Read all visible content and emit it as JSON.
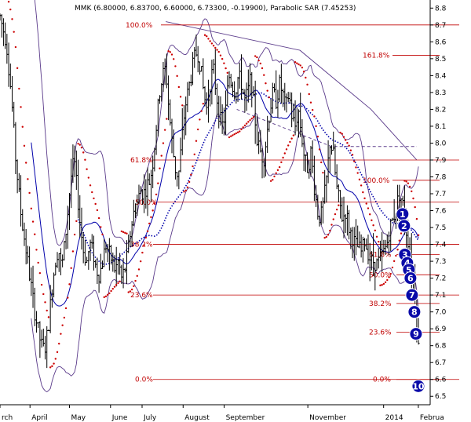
{
  "chart_data": {
    "type": "candlestick",
    "title": "MMK (6.80000, 6.83700, 6.60000, 6.73300, -0.19900), Parabolic SAR (7.45253)",
    "y_ticks": [
      "8.8",
      "8.7",
      "8.6",
      "8.5",
      "8.4",
      "8.3",
      "8.2",
      "8.1",
      "8.0",
      "7.9",
      "7.8",
      "7.7",
      "7.6",
      "7.5",
      "7.4",
      "7.3",
      "7.2",
      "7.1",
      "7.0",
      "6.9",
      "6.8",
      "6.7",
      "6.6",
      "6.5"
    ],
    "y_tick_values": [
      8.8,
      8.7,
      8.6,
      8.5,
      8.4,
      8.3,
      8.2,
      8.1,
      8.0,
      7.9,
      7.8,
      7.7,
      7.6,
      7.5,
      7.4,
      7.3,
      7.2,
      7.1,
      7.0,
      6.9,
      6.8,
      6.7,
      6.6,
      6.5
    ],
    "ylim": [
      6.45,
      8.82
    ],
    "x_labels": [
      {
        "label": "rch",
        "pos": 0
      },
      {
        "label": "April",
        "pos": 38
      },
      {
        "label": "May",
        "pos": 88
      },
      {
        "label": "June",
        "pos": 140
      },
      {
        "label": "July",
        "pos": 180
      },
      {
        "label": "August",
        "pos": 232
      },
      {
        "label": "September",
        "pos": 284
      },
      {
        "label": "November",
        "pos": 390
      },
      {
        "label": "2014",
        "pos": 486
      },
      {
        "label": "Februa",
        "pos": 530
      }
    ],
    "x_range": [
      0,
      545
    ],
    "price_path": [
      [
        0,
        8.75
      ],
      [
        8,
        8.6
      ],
      [
        14,
        8.3
      ],
      [
        20,
        7.9
      ],
      [
        26,
        7.6
      ],
      [
        32,
        7.4
      ],
      [
        38,
        7.2
      ],
      [
        44,
        7.0
      ],
      [
        50,
        6.85
      ],
      [
        54,
        6.78
      ],
      [
        58,
        6.8
      ],
      [
        62,
        6.95
      ],
      [
        66,
        7.15
      ],
      [
        70,
        7.3
      ],
      [
        74,
        7.38
      ],
      [
        78,
        7.25
      ],
      [
        82,
        7.4
      ],
      [
        86,
        7.6
      ],
      [
        90,
        7.8
      ],
      [
        94,
        7.9
      ],
      [
        98,
        7.7
      ],
      [
        102,
        7.5
      ],
      [
        106,
        7.35
      ],
      [
        110,
        7.3
      ],
      [
        114,
        7.4
      ],
      [
        118,
        7.35
      ],
      [
        122,
        7.25
      ],
      [
        126,
        7.22
      ],
      [
        130,
        7.3
      ],
      [
        134,
        7.4
      ],
      [
        138,
        7.35
      ],
      [
        142,
        7.3
      ],
      [
        146,
        7.25
      ],
      [
        150,
        7.3
      ],
      [
        154,
        7.2
      ],
      [
        158,
        7.25
      ],
      [
        162,
        7.35
      ],
      [
        166,
        7.5
      ],
      [
        170,
        7.6
      ],
      [
        174,
        7.65
      ],
      [
        178,
        7.72
      ],
      [
        182,
        7.7
      ],
      [
        186,
        7.75
      ],
      [
        190,
        7.78
      ],
      [
        194,
        7.9
      ],
      [
        198,
        8.1
      ],
      [
        202,
        8.3
      ],
      [
        206,
        8.4
      ],
      [
        210,
        8.45
      ],
      [
        214,
        8.2
      ],
      [
        218,
        8.0
      ],
      [
        222,
        7.85
      ],
      [
        226,
        7.8
      ],
      [
        230,
        8.0
      ],
      [
        234,
        8.2
      ],
      [
        238,
        8.3
      ],
      [
        242,
        8.4
      ],
      [
        246,
        8.5
      ],
      [
        250,
        8.55
      ],
      [
        254,
        8.45
      ],
      [
        258,
        8.3
      ],
      [
        262,
        8.2
      ],
      [
        266,
        8.35
      ],
      [
        270,
        8.45
      ],
      [
        274,
        8.3
      ],
      [
        278,
        8.15
      ],
      [
        282,
        8.1
      ],
      [
        286,
        8.2
      ],
      [
        290,
        8.4
      ],
      [
        294,
        8.35
      ],
      [
        298,
        8.3
      ],
      [
        302,
        8.4
      ],
      [
        306,
        8.35
      ],
      [
        310,
        8.25
      ],
      [
        314,
        8.3
      ],
      [
        318,
        8.4
      ],
      [
        322,
        8.2
      ],
      [
        326,
        8.0
      ],
      [
        330,
        7.95
      ],
      [
        334,
        7.9
      ],
      [
        338,
        8.05
      ],
      [
        342,
        8.2
      ],
      [
        346,
        8.3
      ],
      [
        350,
        8.25
      ],
      [
        354,
        8.35
      ],
      [
        358,
        8.3
      ],
      [
        362,
        8.2
      ],
      [
        366,
        8.3
      ],
      [
        370,
        8.15
      ],
      [
        374,
        8.1
      ],
      [
        378,
        8.2
      ],
      [
        382,
        8.05
      ],
      [
        386,
        7.9
      ],
      [
        390,
        7.85
      ],
      [
        394,
        7.95
      ],
      [
        398,
        7.75
      ],
      [
        402,
        7.6
      ],
      [
        406,
        7.55
      ],
      [
        410,
        7.65
      ],
      [
        414,
        7.8
      ],
      [
        418,
        8.0
      ],
      [
        422,
        7.95
      ],
      [
        426,
        7.75
      ],
      [
        430,
        7.65
      ],
      [
        434,
        7.55
      ],
      [
        438,
        7.6
      ],
      [
        442,
        7.5
      ],
      [
        446,
        7.45
      ],
      [
        450,
        7.4
      ],
      [
        454,
        7.38
      ],
      [
        458,
        7.35
      ],
      [
        462,
        7.42
      ],
      [
        466,
        7.36
      ],
      [
        470,
        7.3
      ],
      [
        474,
        7.3
      ],
      [
        478,
        7.28
      ],
      [
        482,
        7.32
      ],
      [
        486,
        7.35
      ],
      [
        490,
        7.4
      ],
      [
        494,
        7.5
      ],
      [
        498,
        7.55
      ],
      [
        502,
        7.62
      ],
      [
        506,
        7.7
      ],
      [
        510,
        7.65
      ],
      [
        514,
        7.5
      ],
      [
        518,
        7.4
      ],
      [
        522,
        7.25
      ],
      [
        526,
        7.1
      ],
      [
        530,
        6.8
      ],
      [
        532,
        6.73
      ]
    ],
    "fib_levels": [
      {
        "label": "100.0%",
        "value": 8.7,
        "x1": 205,
        "x2": 585,
        "label_x": 160
      },
      {
        "label": "161.8%",
        "value": 8.52,
        "x1": 500,
        "x2": 560,
        "label_x": 462
      },
      {
        "label": "61.8%",
        "value": 7.9,
        "x1": 195,
        "x2": 585,
        "label_x": 166
      },
      {
        "label": "50.0%",
        "value": 7.65,
        "x1": 195,
        "x2": 585,
        "label_x": 172
      },
      {
        "label": "100.0%",
        "value": 7.78,
        "x1": 500,
        "x2": 560,
        "label_x": 462
      },
      {
        "label": "38.2%",
        "value": 7.4,
        "x1": 195,
        "x2": 585,
        "label_x": 166
      },
      {
        "label": "61.8%",
        "value": 7.34,
        "x1": 505,
        "x2": 560,
        "label_x": 470
      },
      {
        "label": "50.0%",
        "value": 7.22,
        "x1": 505,
        "x2": 560,
        "label_x": 470
      },
      {
        "label": "23.6%",
        "value": 7.1,
        "x1": 195,
        "x2": 585,
        "label_x": 166
      },
      {
        "label": "38.2%",
        "value": 7.05,
        "x1": 505,
        "x2": 560,
        "label_x": 470
      },
      {
        "label": "23.6%",
        "value": 6.88,
        "x1": 505,
        "x2": 560,
        "label_x": 470
      },
      {
        "label": "0.0%",
        "value": 6.6,
        "x1": 195,
        "x2": 585,
        "label_x": 172
      },
      {
        "label": "0.0%",
        "value": 6.6,
        "x1": 505,
        "x2": 560,
        "label_x": 475
      }
    ],
    "wave_markers": [
      {
        "label": "1",
        "x": 510,
        "value": 7.58
      },
      {
        "label": "2",
        "x": 512,
        "value": 7.51
      },
      {
        "label": "3",
        "x": 513,
        "value": 7.34
      },
      {
        "label": "4",
        "x": 516,
        "value": 7.29
      },
      {
        "label": "5",
        "x": 518,
        "value": 7.25
      },
      {
        "label": "6",
        "x": 520,
        "value": 7.2
      },
      {
        "label": "7",
        "x": 522,
        "value": 7.1
      },
      {
        "label": "8",
        "x": 525,
        "value": 7.0
      },
      {
        "label": "9",
        "x": 527,
        "value": 6.87
      },
      {
        "label": "10",
        "x": 530,
        "value": 6.56
      }
    ],
    "colors": {
      "candles": "#000000",
      "sar": "#cc0000",
      "ma": "#0000aa",
      "bands": "#5a3a8a",
      "fib": "#c00000",
      "wave_fill": "#0a0aa8",
      "axis_text": "#000000"
    }
  }
}
